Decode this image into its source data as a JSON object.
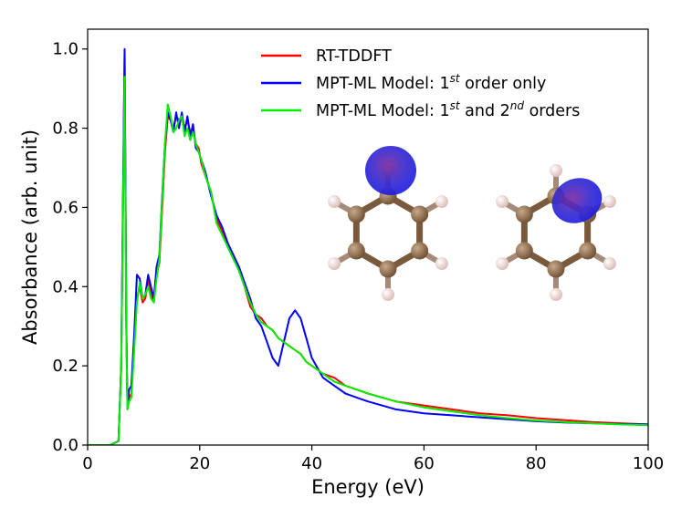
{
  "chart_data": {
    "type": "line",
    "title": "",
    "xlabel": "Energy (eV)",
    "ylabel": "Absorbance (arb. unit)",
    "xlim": [
      0,
      100
    ],
    "ylim": [
      0,
      1.05
    ],
    "xticks": [
      "0",
      "20",
      "40",
      "60",
      "80",
      "100"
    ],
    "yticks": [
      "0.0",
      "0.2",
      "0.4",
      "0.6",
      "0.8",
      "1.0"
    ],
    "grid": false,
    "legend_position": "top-right",
    "series": [
      {
        "name": "RT-TDDFT",
        "legend_base": "RT-TDDFT",
        "legend_parts": [],
        "color": "#ff0000",
        "x": [
          0,
          4,
          5.5,
          6,
          6.3,
          6.6,
          6.9,
          7.1,
          7.4,
          7.8,
          8.3,
          8.8,
          9.3,
          9.8,
          10.3,
          10.8,
          11.3,
          11.8,
          12.3,
          12.8,
          13.3,
          13.8,
          14.3,
          14.8,
          15.3,
          15.8,
          16.3,
          16.8,
          17.3,
          17.8,
          18.3,
          18.8,
          19.3,
          19.8,
          20.3,
          21,
          22,
          23,
          24,
          25,
          26,
          27,
          28,
          29,
          30,
          31,
          32,
          33,
          34,
          35,
          36,
          37,
          38,
          39,
          40,
          42,
          44,
          46,
          48,
          50,
          55,
          60,
          65,
          70,
          75,
          80,
          85,
          90,
          95,
          100
        ],
        "y": [
          0,
          0,
          0.01,
          0.2,
          0.6,
          0.99,
          0.3,
          0.09,
          0.12,
          0.13,
          0.25,
          0.37,
          0.4,
          0.36,
          0.37,
          0.42,
          0.38,
          0.36,
          0.43,
          0.46,
          0.6,
          0.74,
          0.83,
          0.82,
          0.8,
          0.83,
          0.82,
          0.83,
          0.8,
          0.82,
          0.79,
          0.8,
          0.76,
          0.75,
          0.71,
          0.68,
          0.64,
          0.57,
          0.54,
          0.5,
          0.48,
          0.44,
          0.4,
          0.35,
          0.33,
          0.32,
          0.3,
          0.29,
          0.27,
          0.26,
          0.25,
          0.24,
          0.23,
          0.21,
          0.2,
          0.18,
          0.17,
          0.15,
          0.14,
          0.13,
          0.11,
          0.1,
          0.09,
          0.08,
          0.075,
          0.068,
          0.063,
          0.058,
          0.055,
          0.052
        ]
      },
      {
        "name": "MPT-ML Model: 1st order only",
        "legend_base": "MPT-ML Model: 1",
        "legend_parts": [
          {
            "text": "st",
            "sup": true
          },
          {
            "text": " order only",
            "sup": false
          }
        ],
        "color": "#0000ff",
        "x": [
          0,
          4,
          5.5,
          6,
          6.3,
          6.6,
          6.9,
          7.1,
          7.4,
          7.8,
          8.3,
          8.8,
          9.3,
          9.8,
          10.3,
          10.8,
          11.3,
          11.8,
          12.3,
          12.8,
          13.3,
          13.8,
          14.3,
          14.8,
          15.3,
          15.8,
          16.3,
          16.8,
          17.3,
          17.8,
          18.3,
          18.8,
          19.3,
          19.8,
          20.3,
          21,
          22,
          23,
          24,
          25,
          26,
          27,
          28,
          29,
          30,
          31,
          32,
          33,
          34,
          35,
          36,
          37,
          38,
          39,
          40,
          42,
          44,
          46,
          48,
          50,
          55,
          60,
          65,
          70,
          75,
          80,
          85,
          90,
          95,
          100
        ],
        "y": [
          0,
          0,
          0.01,
          0.2,
          0.62,
          1.0,
          0.3,
          0.1,
          0.14,
          0.15,
          0.28,
          0.43,
          0.42,
          0.37,
          0.38,
          0.43,
          0.4,
          0.37,
          0.45,
          0.48,
          0.63,
          0.76,
          0.84,
          0.82,
          0.79,
          0.84,
          0.8,
          0.84,
          0.79,
          0.83,
          0.78,
          0.81,
          0.75,
          0.74,
          0.72,
          0.69,
          0.63,
          0.58,
          0.55,
          0.51,
          0.48,
          0.45,
          0.41,
          0.37,
          0.32,
          0.3,
          0.26,
          0.22,
          0.2,
          0.26,
          0.32,
          0.34,
          0.32,
          0.27,
          0.22,
          0.17,
          0.15,
          0.13,
          0.12,
          0.11,
          0.09,
          0.08,
          0.075,
          0.07,
          0.065,
          0.06,
          0.057,
          0.055,
          0.053,
          0.052
        ]
      },
      {
        "name": "MPT-ML Model: 1st and 2nd orders",
        "legend_base": "MPT-ML Model: 1",
        "legend_parts": [
          {
            "text": "st",
            "sup": true
          },
          {
            "text": " and 2",
            "sup": false
          },
          {
            "text": "nd",
            "sup": true
          },
          {
            "text": " orders",
            "sup": false
          }
        ],
        "color": "#00ee00",
        "x": [
          0,
          4,
          5.5,
          6,
          6.3,
          6.6,
          6.9,
          7.1,
          7.4,
          7.8,
          8.3,
          8.8,
          9.3,
          9.8,
          10.3,
          10.8,
          11.3,
          11.8,
          12.3,
          12.8,
          13.3,
          13.8,
          14.3,
          14.8,
          15.3,
          15.8,
          16.3,
          16.8,
          17.3,
          17.8,
          18.3,
          18.8,
          19.3,
          19.8,
          20.3,
          21,
          22,
          23,
          24,
          25,
          26,
          27,
          28,
          29,
          30,
          31,
          32,
          33,
          34,
          35,
          36,
          37,
          38,
          39,
          40,
          42,
          44,
          46,
          48,
          50,
          55,
          60,
          65,
          70,
          75,
          80,
          85,
          90,
          95,
          100
        ],
        "y": [
          0,
          0,
          0.01,
          0.19,
          0.58,
          0.93,
          0.28,
          0.09,
          0.11,
          0.12,
          0.24,
          0.36,
          0.41,
          0.37,
          0.38,
          0.4,
          0.37,
          0.36,
          0.42,
          0.47,
          0.62,
          0.76,
          0.86,
          0.83,
          0.79,
          0.8,
          0.82,
          0.83,
          0.78,
          0.8,
          0.77,
          0.79,
          0.76,
          0.74,
          0.72,
          0.68,
          0.64,
          0.56,
          0.53,
          0.5,
          0.47,
          0.44,
          0.4,
          0.36,
          0.33,
          0.31,
          0.3,
          0.29,
          0.27,
          0.26,
          0.25,
          0.24,
          0.23,
          0.21,
          0.2,
          0.18,
          0.16,
          0.15,
          0.14,
          0.13,
          0.11,
          0.095,
          0.085,
          0.075,
          0.068,
          0.062,
          0.058,
          0.055,
          0.052,
          0.05
        ]
      }
    ]
  },
  "inset": {
    "molecule_a": {
      "density_color": "#2a2ad6",
      "carbon_color": "#8b6a4a",
      "hydrogen_color": "#f0d8d4"
    },
    "molecule_b": {
      "density_color": "#2a2ad6",
      "carbon_color": "#8b6a4a",
      "hydrogen_color": "#f0d8d4"
    }
  }
}
